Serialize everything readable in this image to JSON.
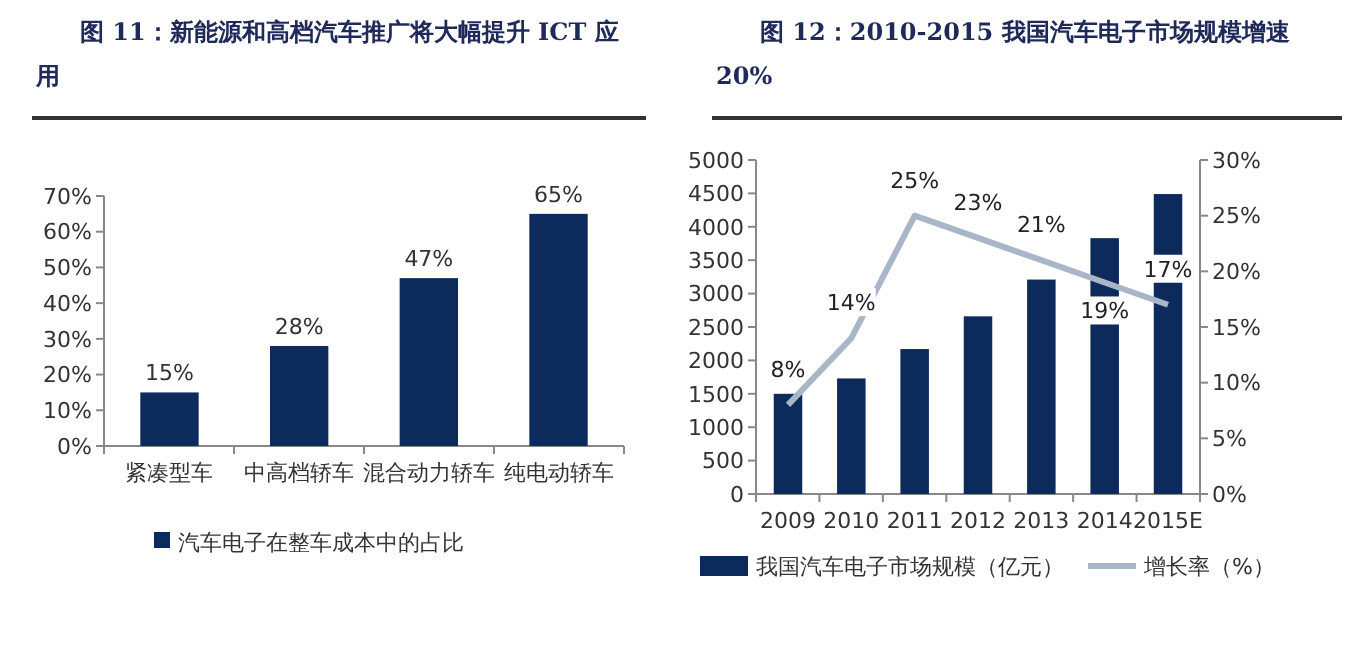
{
  "chart_data": [
    {
      "type": "bar",
      "title": "图 11：新能源和高档汽车推广将大幅提升 ICT 应用",
      "categories": [
        "紧凑型车",
        "中高档轿车",
        "混合动力轿车",
        "纯电动轿车"
      ],
      "series": [
        {
          "name": "汽车电子在整车成本中的占比",
          "color": "#0d2a5c",
          "values": [
            15,
            28,
            47,
            65
          ],
          "value_labels": [
            "15%",
            "28%",
            "47%",
            "65%"
          ]
        }
      ],
      "ylim": [
        0,
        70
      ],
      "yticks": [
        {
          "value": 0,
          "label": "0%"
        },
        {
          "value": 10,
          "label": "10%"
        },
        {
          "value": 20,
          "label": "20%"
        },
        {
          "value": 30,
          "label": "30%"
        },
        {
          "value": 40,
          "label": "40%"
        },
        {
          "value": 50,
          "label": "50%"
        },
        {
          "value": 60,
          "label": "60%"
        },
        {
          "value": 70,
          "label": "70%"
        }
      ],
      "legend": "bottom"
    },
    {
      "type": "bar",
      "title": "图 12：2010-2015 我国汽车电子市场规模增速 20%",
      "categories": [
        "2009",
        "2010",
        "2011",
        "2012",
        "2013",
        "2014",
        "2015E"
      ],
      "series": [
        {
          "name": "我国汽车电子市场规模（亿元）",
          "color": "#0d2a5c",
          "values": [
            1500,
            1730,
            2170,
            2660,
            3210,
            3830,
            4490
          ]
        },
        {
          "name": "增长率（%）",
          "type": "line",
          "axis": "y2",
          "color": "#a9b6c8",
          "values": [
            8,
            14,
            25,
            23,
            21,
            19,
            17
          ],
          "value_labels": [
            "8%",
            "14%",
            "25%",
            "23%",
            "21%",
            "19%",
            "17%"
          ]
        }
      ],
      "ylim": [
        0,
        5000
      ],
      "yticks": [
        0,
        500,
        1000,
        1500,
        2000,
        2500,
        3000,
        3500,
        4000,
        4500,
        5000
      ],
      "y2lim": [
        0,
        30
      ],
      "y2ticks": [
        {
          "value": 0,
          "label": "0%"
        },
        {
          "value": 5,
          "label": "5%"
        },
        {
          "value": 10,
          "label": "10%"
        },
        {
          "value": 15,
          "label": "15%"
        },
        {
          "value": 20,
          "label": "20%"
        },
        {
          "value": 25,
          "label": "25%"
        },
        {
          "value": 30,
          "label": "30%"
        }
      ],
      "legend": "bottom"
    }
  ]
}
